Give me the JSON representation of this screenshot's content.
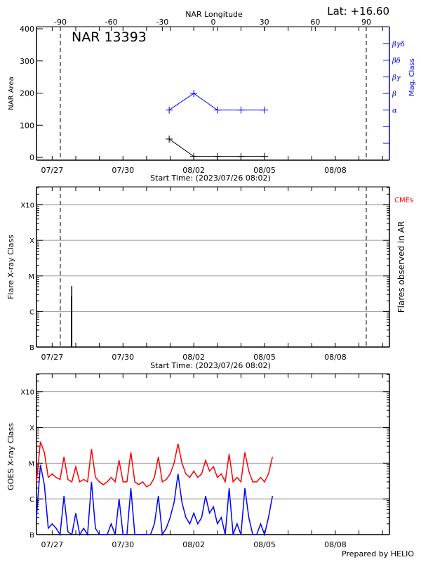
{
  "header": {
    "latitude": "Lat: +16.60",
    "credit": "Prepared by HELIO"
  },
  "chart_data": [
    {
      "type": "line",
      "title": "NAR 13393",
      "xlabel": "Start Time: (2023/07/26 08:02)",
      "xlim": [
        "2023-07-26T08:02",
        "2023-08-10T07:00"
      ],
      "x_tick_labels": [
        "07/27",
        "07/30",
        "08/02",
        "08/05",
        "08/08"
      ],
      "x_tick_dates": [
        "2023-07-27T00:00",
        "2023-07-30T00:00",
        "2023-08-02T00:00",
        "2023-08-05T00:00",
        "2023-08-08T00:00"
      ],
      "top_axis": {
        "label": "NAR Longitude",
        "ticks": [
          -90,
          -60,
          -30,
          0,
          30,
          60,
          90
        ],
        "tick_labels": [
          "-90",
          "-60",
          "-30",
          "0",
          "30",
          "60",
          "90"
        ]
      },
      "limb_longitudes": [
        -90,
        90
      ],
      "ylabel": "NAR Area",
      "ylim": [
        -9,
        406
      ],
      "yticks": [
        0,
        100,
        200,
        300,
        400
      ],
      "ytick_labels": [
        "0",
        "100",
        "200",
        "300",
        "400"
      ],
      "y2label": "Mag. Class",
      "y2_categories": [
        "",
        "",
        "α",
        "β",
        "βγ",
        "βδ",
        "βγδ"
      ],
      "grid": false,
      "colors": {
        "area": "#000000",
        "mag": "#0000ff"
      },
      "series": [
        {
          "axis": "left",
          "x": [
            "2023-07-31T23:00",
            "2023-08-02T00:00",
            "2023-08-03T00:00",
            "2023-08-04T00:00",
            "2023-08-05T00:00"
          ],
          "y": [
            57,
            3,
            3,
            3,
            3
          ]
        },
        {
          "axis": "right",
          "x": [
            "2023-07-31T23:00",
            "2023-08-02T00:00",
            "2023-08-03T00:00",
            "2023-08-04T00:00",
            "2023-08-05T00:00"
          ],
          "y": [
            "α",
            "β",
            "α",
            "α",
            "α"
          ]
        }
      ]
    },
    {
      "type": "bar",
      "xlabel": "Start Time: (2023/07/26 08:02)",
      "ylabel": "Flare X-ray Class",
      "y2label": "Flares observed in AR",
      "cme_label": "CMEs",
      "y_scale": "log",
      "ylim": [
        1e-07,
        0.0032
      ],
      "ytick_values": [
        1e-07,
        1e-06,
        1e-05,
        0.0001,
        0.001
      ],
      "ytick_labels": [
        "B",
        "C",
        "M",
        "X",
        "X10"
      ],
      "grid": true,
      "limb_longitudes": [
        -90,
        90
      ],
      "colors": {
        "flare": "#000000",
        "cme": "#ff0000"
      },
      "flares": [
        {
          "time": "2023-07-27T19:40",
          "flux": 2.7e-06
        },
        {
          "time": "2023-07-27T19:55",
          "flux": 5.2e-06
        }
      ]
    },
    {
      "type": "line",
      "ylabel": "GOES X-ray Class",
      "y_scale": "log",
      "ylim": [
        1e-07,
        0.0032
      ],
      "ytick_values": [
        1e-07,
        1e-06,
        1e-05,
        0.0001,
        0.001
      ],
      "ytick_labels": [
        "B",
        "C",
        "M",
        "X",
        "X10"
      ],
      "grid": true,
      "t0": "2023-07-26T08:00",
      "cadence_hours": 4,
      "series": [
        {
          "color": "#ff0000",
          "values": [
            3e-06,
            4e-05,
            2e-05,
            4e-06,
            5e-06,
            4e-06,
            3.5e-06,
            1.5e-05,
            3.5e-06,
            3e-06,
            8e-06,
            3e-06,
            3.5e-06,
            3e-06,
            2.5e-05,
            4e-06,
            3e-06,
            2.5e-06,
            3e-06,
            4e-06,
            3e-06,
            1.2e-05,
            3e-06,
            3e-06,
            2e-05,
            3e-06,
            2.5e-06,
            3e-06,
            2.2e-06,
            2.5e-06,
            4e-06,
            1.5e-05,
            3e-06,
            3.5e-06,
            5e-06,
            1e-05,
            3.5e-05,
            1e-05,
            5e-06,
            4e-06,
            6e-06,
            4e-06,
            5e-06,
            1.2e-05,
            6e-06,
            8e-06,
            4e-06,
            5e-06,
            3e-06,
            1.8e-05,
            3e-06,
            4e-06,
            3e-06,
            2e-05,
            6e-06,
            3e-06,
            3e-06,
            4e-06,
            3e-06,
            5e-06,
            1.5e-05
          ]
        },
        {
          "color": "#0000ff",
          "values": [
            3e-07,
            9e-06,
            2.5e-06,
            1.5e-07,
            2e-07,
            1.5e-07,
            1e-07,
            1.2e-06,
            1.2e-07,
            1e-07,
            4e-07,
            8e-08,
            1.5e-07,
            1e-07,
            3e-06,
            1.5e-07,
            8e-08,
            5e-08,
            1e-07,
            2e-07,
            1e-07,
            1e-06,
            1e-07,
            1e-07,
            2e-06,
            1e-07,
            5e-08,
            1e-07,
            5e-08,
            1e-07,
            2e-07,
            1.2e-06,
            1e-07,
            1.5e-07,
            3e-07,
            8e-07,
            5e-06,
            8e-07,
            3e-07,
            2e-07,
            4e-07,
            2e-07,
            3e-07,
            1.2e-06,
            4e-07,
            6e-07,
            2e-07,
            3e-07,
            1e-07,
            2e-06,
            1e-07,
            2e-07,
            1e-07,
            2e-06,
            3e-07,
            1e-07,
            1e-07,
            2e-07,
            1e-07,
            3e-07,
            1.2e-06
          ]
        }
      ]
    }
  ]
}
